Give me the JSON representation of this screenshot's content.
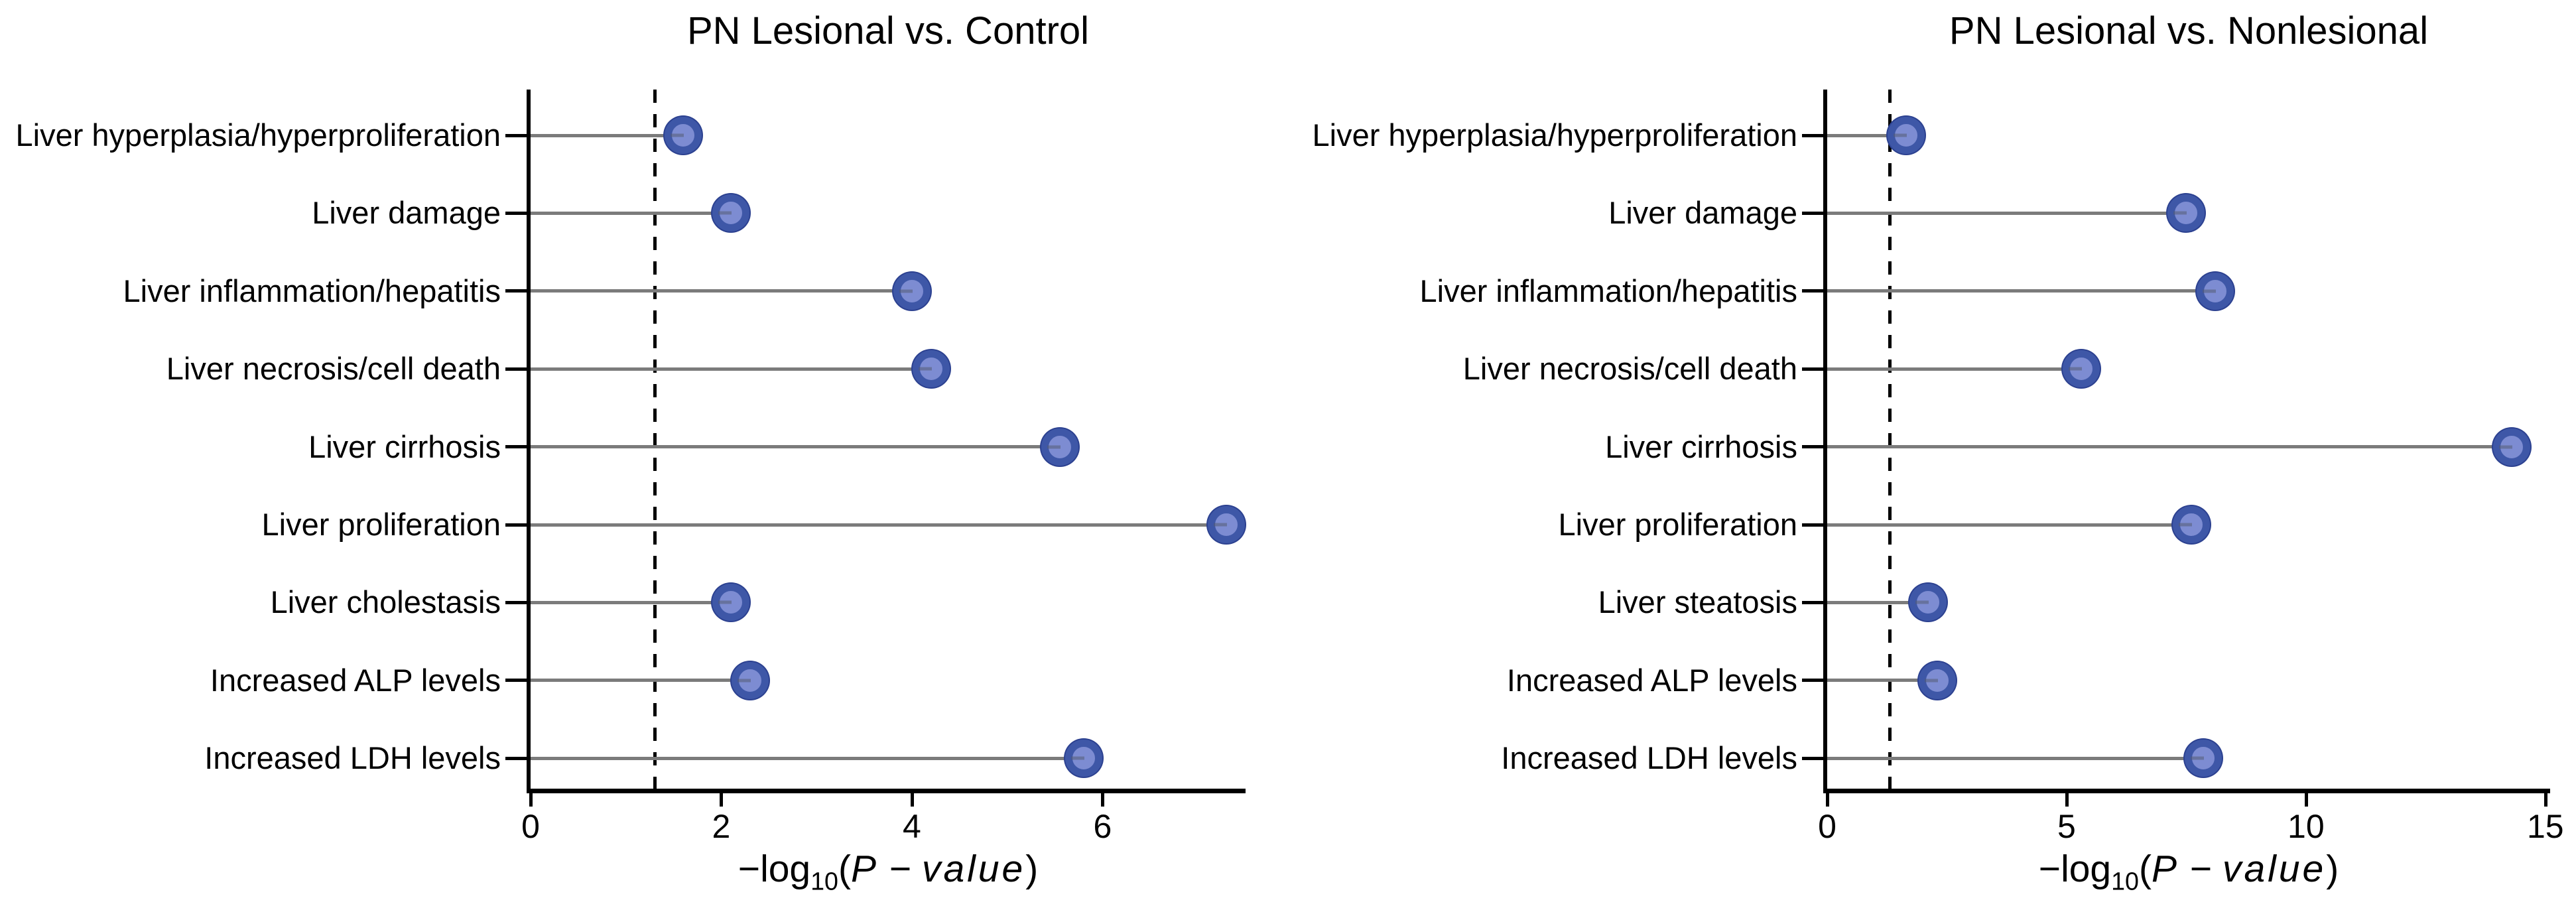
{
  "figure": {
    "background": "#FFFFFF"
  },
  "style": {
    "dot_fill": "#7D8CD2",
    "dot_ring": "#3E57A7",
    "dot_outline": "#2C4190",
    "stem_color": "#7B7B7B",
    "axis_color": "#000000",
    "threshold_color": "#000000",
    "text_color": "#000000"
  },
  "chart_data": [
    {
      "type": "scatter",
      "variant": "horizontal-lollipop",
      "title": "PN Lesional vs. Control",
      "categories": [
        "Liver hyperplasia/hyperproliferation",
        "Liver damage",
        "Liver inflammation/hepatitis",
        "Liver necrosis/cell death",
        "Liver cirrhosis",
        "Liver proliferation",
        "Liver cholestasis",
        "Increased ALP levels",
        "Increased LDH levels"
      ],
      "values": [
        1.6,
        2.1,
        4.0,
        4.2,
        5.55,
        7.3,
        2.1,
        2.3,
        5.8
      ],
      "xlabel": "−log10(P−value)",
      "xlabel_parts": {
        "func": "−log",
        "sub": "10",
        "open": "(",
        "var1": "P",
        "minus": " − ",
        "var2": "value",
        "close": ")"
      },
      "xlim": [
        0,
        7.5
      ],
      "xticks": [
        0,
        2,
        4,
        6
      ],
      "threshold_x": 1.3,
      "grid": false,
      "legend": null
    },
    {
      "type": "scatter",
      "variant": "horizontal-lollipop",
      "title": "PN Lesional vs. Nonlesional",
      "categories": [
        "Liver hyperplasia/hyperproliferation",
        "Liver damage",
        "Liver inflammation/hepatitis",
        "Liver necrosis/cell death",
        "Liver cirrhosis",
        "Liver proliferation",
        "Liver steatosis",
        "Increased ALP levels",
        "Increased LDH levels"
      ],
      "values": [
        1.65,
        7.5,
        8.1,
        5.3,
        14.3,
        7.6,
        2.1,
        2.3,
        7.85
      ],
      "xlabel": "−log10(P−value)",
      "xlabel_parts": {
        "func": "−log",
        "sub": "10",
        "open": "(",
        "var1": "P",
        "minus": " − ",
        "var2": "value",
        "close": ")"
      },
      "xlim": [
        0,
        15.1
      ],
      "xticks": [
        0,
        5,
        10,
        15
      ],
      "threshold_x": 1.3,
      "grid": false,
      "legend": null
    }
  ]
}
